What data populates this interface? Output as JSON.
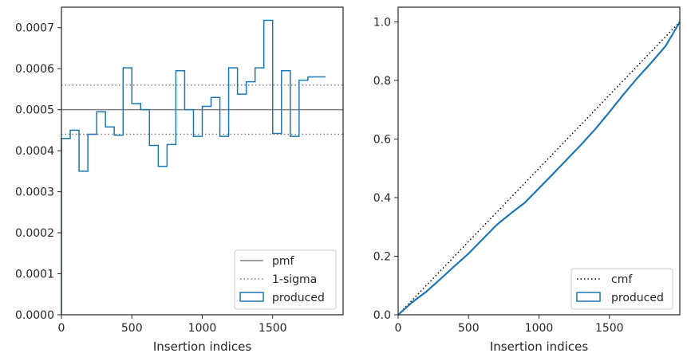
{
  "chart_data": [
    {
      "type": "step",
      "xlabel": "Insertion indices",
      "ylabel": "",
      "xlim": [
        0,
        2000
      ],
      "ylim": [
        0,
        0.00075
      ],
      "xticks": [
        0,
        500,
        1000,
        1500
      ],
      "yticks": [
        0.0,
        0.0001,
        0.0002,
        0.0003,
        0.0004,
        0.0005,
        0.0006,
        0.0007
      ],
      "ytick_labels": [
        "0.0000",
        "0.0001",
        "0.0002",
        "0.0003",
        "0.0004",
        "0.0005",
        "0.0006",
        "0.0007"
      ],
      "bin_width": 62.5,
      "lines": [
        {
          "name": "pmf",
          "y": 0.0005,
          "style": "solid",
          "color": "#808080"
        },
        {
          "name": "1-sigma",
          "y": [
            0.00044,
            0.00056
          ],
          "style": "dotted",
          "color": "#808080"
        }
      ],
      "series": [
        {
          "name": "produced",
          "color": "#1f77b4",
          "bin_edges_start": 0,
          "values": [
            0.00043,
            0.00045,
            0.00035,
            0.00044,
            0.000495,
            0.000458,
            0.000438,
            0.000602,
            0.000515,
            0.0005,
            0.000413,
            0.000362,
            0.000415,
            0.000595,
            0.0005,
            0.000435,
            0.000508,
            0.00053,
            0.000435,
            0.000602,
            0.000538,
            0.000568,
            0.000602,
            0.000718,
            0.000442,
            0.000595,
            0.000435,
            0.000572,
            0.00058,
            0.00058
          ]
        }
      ],
      "legend": {
        "position": "lower-right",
        "entries": [
          "pmf",
          "1-sigma",
          "produced"
        ]
      },
      "grid": false
    },
    {
      "type": "line",
      "xlabel": "Insertion indices",
      "ylabel": "",
      "xlim": [
        0,
        2000
      ],
      "ylim": [
        0,
        1.05
      ],
      "xticks": [
        0,
        500,
        1000,
        1500
      ],
      "yticks": [
        0.0,
        0.2,
        0.4,
        0.6,
        0.8,
        1.0
      ],
      "ytick_labels": [
        "0.0",
        "0.2",
        "0.4",
        "0.6",
        "0.8",
        "1.0"
      ],
      "series": [
        {
          "name": "cmf",
          "style": "dotted",
          "color": "#000000",
          "x": [
            0,
            2000
          ],
          "y": [
            0,
            1.0
          ]
        },
        {
          "name": "produced",
          "color": "#1f77b4",
          "x": [
            0,
            100,
            200,
            300,
            400,
            500,
            600,
            700,
            800,
            900,
            1000,
            1100,
            1200,
            1300,
            1400,
            1500,
            1600,
            1700,
            1800,
            1900,
            2000
          ],
          "y": [
            0,
            0.043,
            0.079,
            0.122,
            0.166,
            0.209,
            0.258,
            0.307,
            0.346,
            0.383,
            0.432,
            0.481,
            0.531,
            0.581,
            0.634,
            0.692,
            0.752,
            0.809,
            0.862,
            0.918,
            1.0
          ]
        }
      ],
      "legend": {
        "position": "lower-right",
        "entries": [
          "cmf",
          "produced"
        ]
      },
      "grid": false
    }
  ]
}
